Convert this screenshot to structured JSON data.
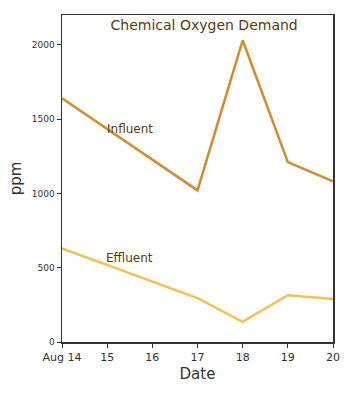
{
  "chart_data": {
    "type": "line",
    "title": "Chemical Oxygen Demand",
    "x_label": "Date",
    "y_label": "ppm",
    "x": [
      14,
      17,
      18,
      19,
      20
    ],
    "series": [
      {
        "name": "Influent",
        "color": "#d58a2b",
        "values": [
          1640,
          1020,
          2030,
          1210,
          1080
        ]
      },
      {
        "name": "Effluent",
        "color": "#f4c14c",
        "values": [
          630,
          295,
          135,
          315,
          290
        ]
      }
    ],
    "xlim": [
      14,
      20
    ],
    "xticks": [
      {
        "value": 14,
        "label": "Aug 14"
      },
      15,
      16,
      17,
      18,
      19,
      20
    ],
    "ylim": [
      0,
      2200
    ],
    "yticks": [
      0,
      500,
      1000,
      1500,
      2000
    ],
    "grid": false
  }
}
